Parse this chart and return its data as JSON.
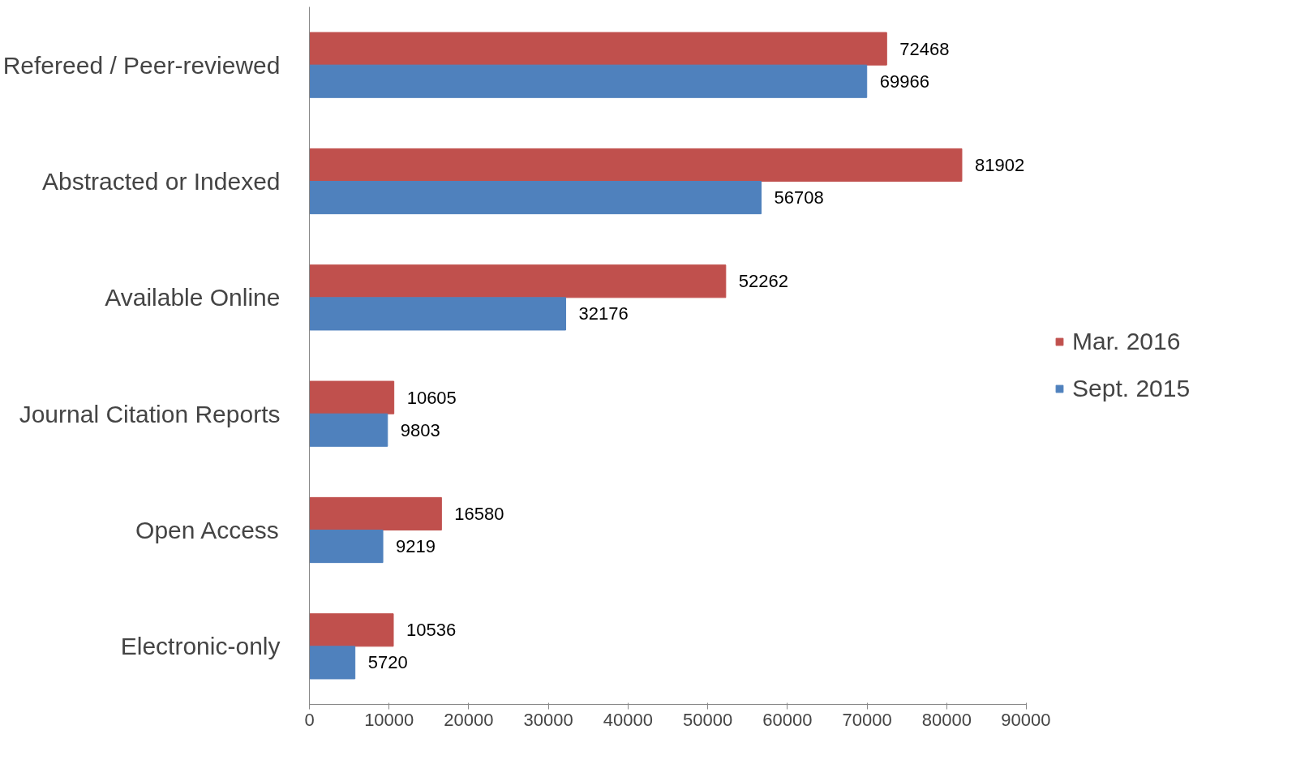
{
  "chart_data": {
    "type": "bar",
    "orientation": "horizontal",
    "categories": [
      "Refereed / Peer-reviewed",
      "Abstracted or Indexed",
      "Available Online",
      "Journal Citation Reports",
      "Open Access",
      "Electronic-only"
    ],
    "series": [
      {
        "name": "Mar. 2016",
        "color": "#c0504d",
        "values": [
          72468,
          81902,
          52262,
          10605,
          16580,
          10536
        ]
      },
      {
        "name": "Sept. 2015",
        "color": "#4f81bd",
        "values": [
          69966,
          56708,
          32176,
          9803,
          9219,
          5720
        ]
      }
    ],
    "xlim": [
      0,
      90000
    ],
    "xticks": [
      0,
      10000,
      20000,
      30000,
      40000,
      50000,
      60000,
      70000,
      80000,
      90000
    ],
    "data_labels": true,
    "grid": false,
    "legend": "right"
  }
}
